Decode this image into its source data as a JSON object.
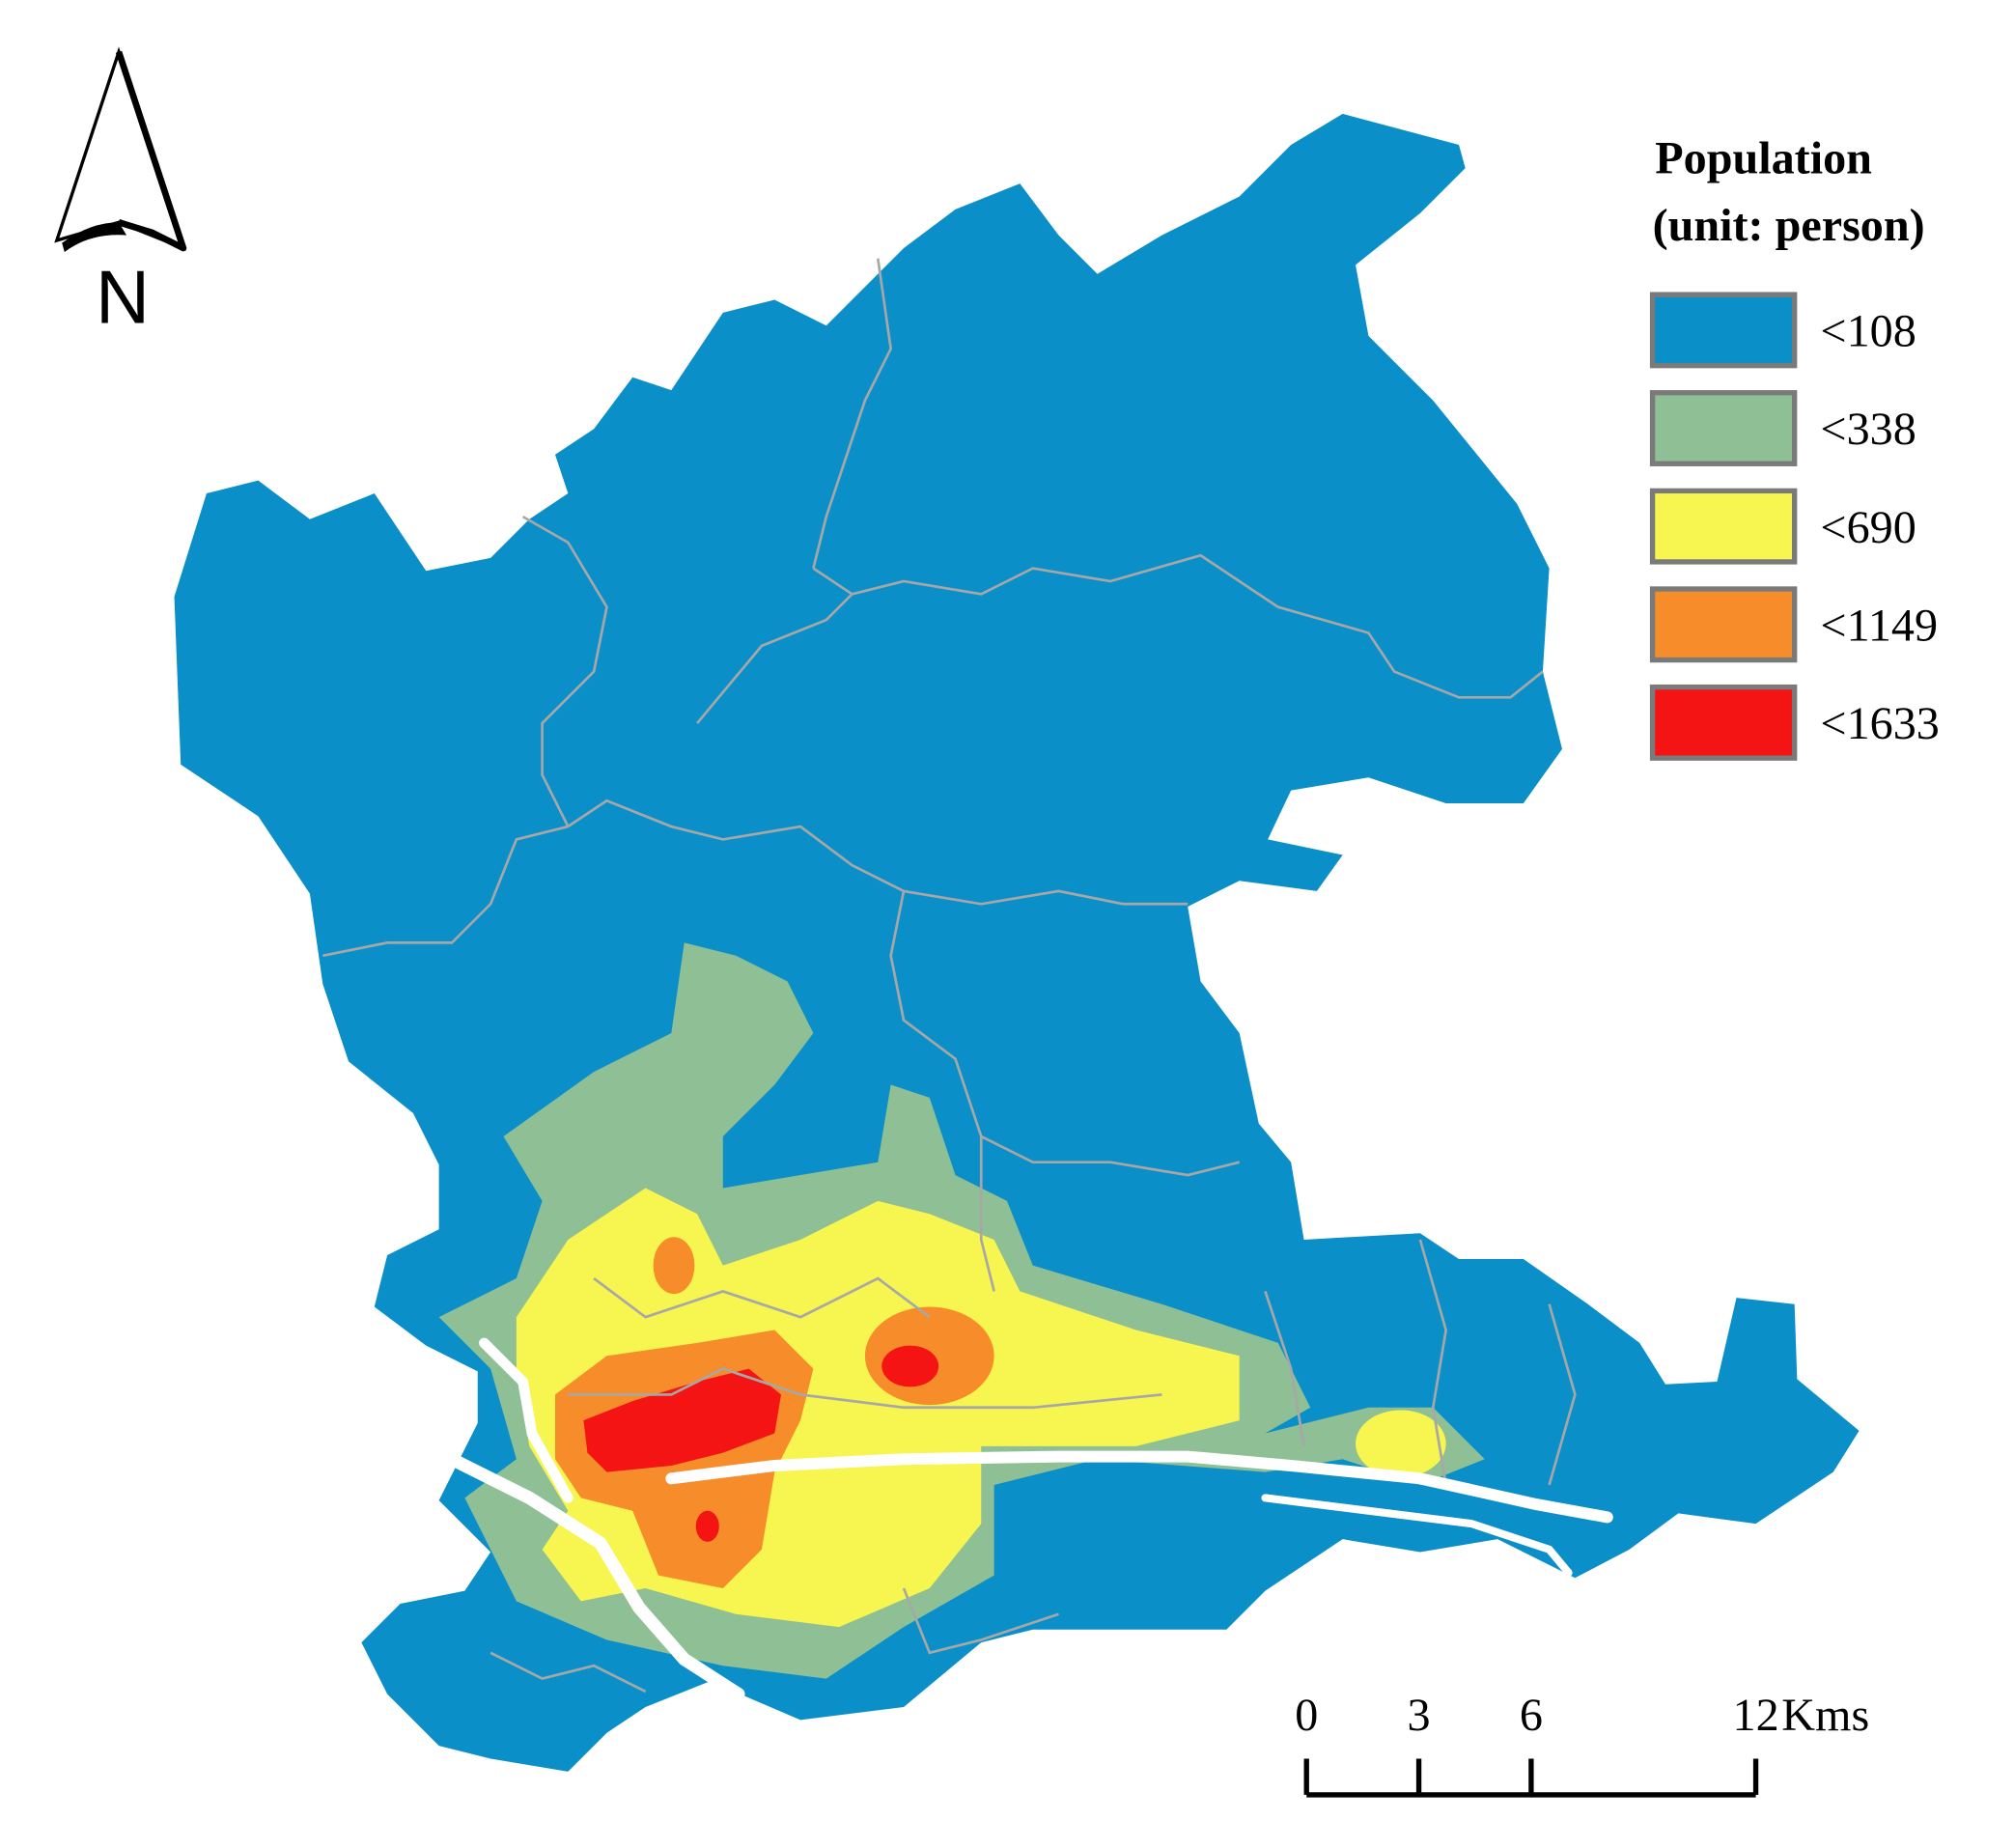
{
  "north_arrow": {
    "label": "N"
  },
  "legend": {
    "title": "Population",
    "subtitle": "(unit: person)",
    "items": [
      {
        "label": "<108",
        "color": "#0b8fc9"
      },
      {
        "label": "<338",
        "color": "#8fbf95"
      },
      {
        "label": "<690",
        "color": "#f7f54f"
      },
      {
        "label": "<1149",
        "color": "#f68d2a"
      },
      {
        "label": "<1633",
        "color": "#f41414"
      }
    ]
  },
  "scale_bar": {
    "ticks": [
      0,
      3,
      6,
      12
    ],
    "unit": "Kms"
  }
}
